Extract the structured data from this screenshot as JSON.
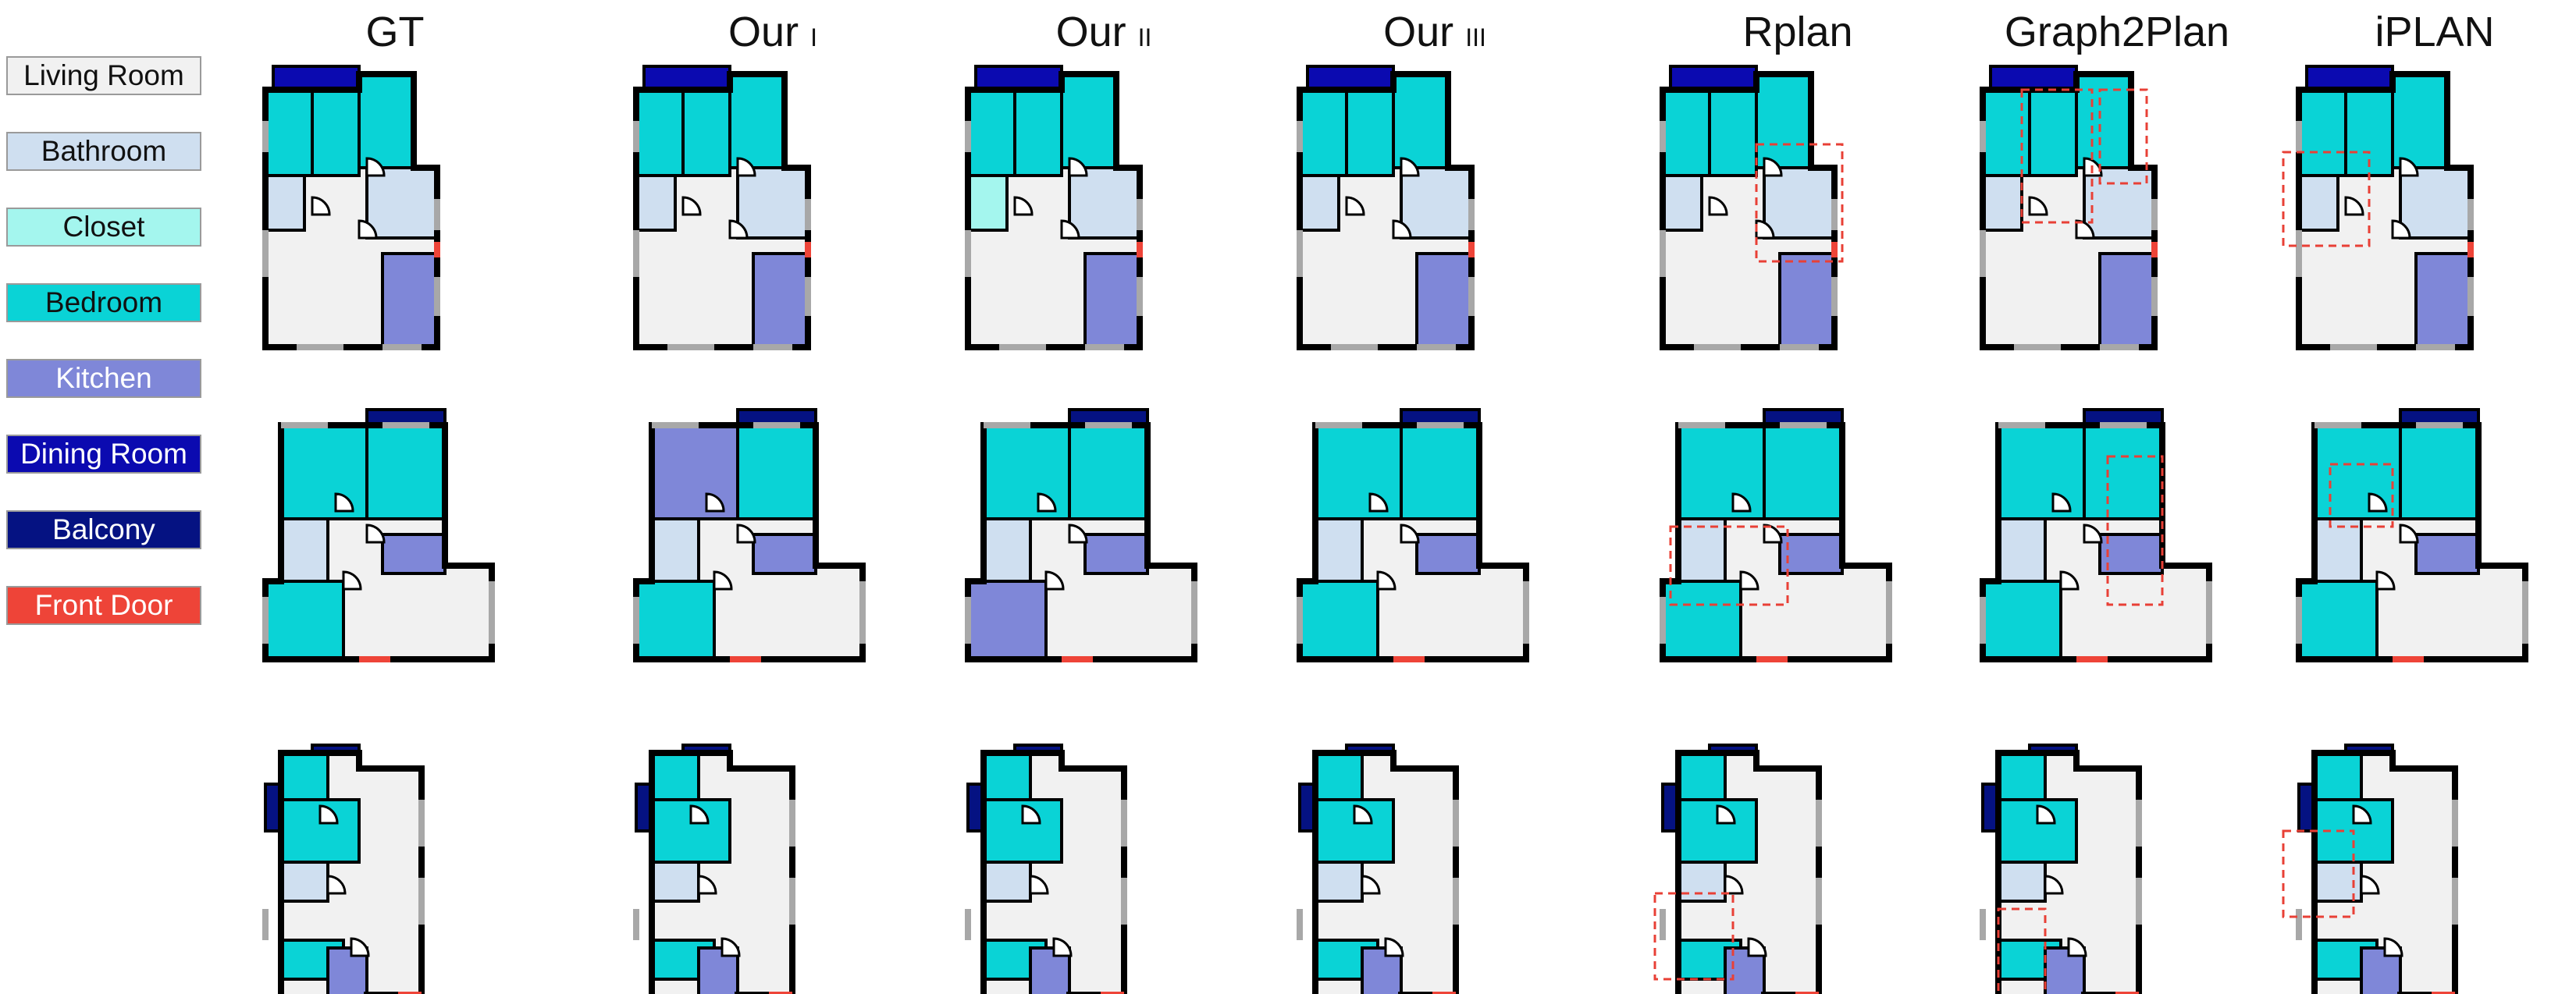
{
  "legend": [
    {
      "label": "Living Room",
      "color": "#f1f1f1",
      "text_color": "#111111"
    },
    {
      "label": "Bathroom",
      "color": "#cfdff0",
      "text_color": "#111111"
    },
    {
      "label": "Closet",
      "color": "#a4f6ee",
      "text_color": "#111111"
    },
    {
      "label": "Bedroom",
      "color": "#0ad3d6",
      "text_color": "#111111"
    },
    {
      "label": "Kitchen",
      "color": "#7f87d8",
      "text_color": "#ffffff"
    },
    {
      "label": "Dining Room",
      "color": "#0b0ab0",
      "text_color": "#ffffff"
    },
    {
      "label": "Balcony",
      "color": "#051282",
      "text_color": "#ffffff"
    },
    {
      "label": "Front Door",
      "color": "#ee4438",
      "text_color": "#ffffff"
    }
  ],
  "columns": [
    {
      "main": "GT",
      "sub": ""
    },
    {
      "main": "Our",
      "sub": "I"
    },
    {
      "main": "Our",
      "sub": "II"
    },
    {
      "main": "Our",
      "sub": "III"
    },
    {
      "main": "Rplan",
      "sub": ""
    },
    {
      "main": "Graph2Plan",
      "sub": ""
    },
    {
      "main": "iPLAN",
      "sub": ""
    }
  ],
  "colors": {
    "wall": "#000000",
    "window": "#a8a8a8",
    "highlight": "#e84036"
  }
}
